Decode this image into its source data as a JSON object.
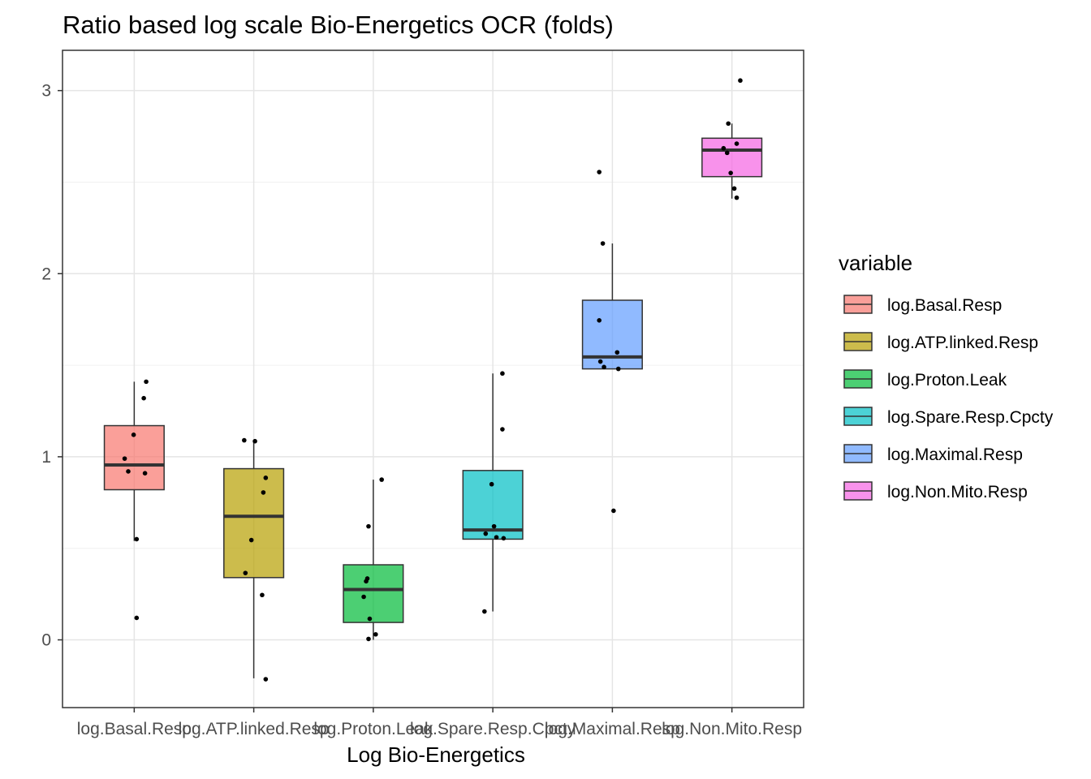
{
  "chart_data": {
    "type": "box",
    "title": "Ratio based log scale Bio-Energetics OCR (folds)",
    "xlabel": "Log Bio-Energetics",
    "ylabel": "",
    "ylim": [
      -0.37,
      3.22
    ],
    "yticks": [
      0,
      1,
      2,
      3
    ],
    "grid": true,
    "legend": {
      "title": "variable",
      "position": "right"
    },
    "categories": [
      "log.Basal.Resp",
      "log.ATP.linked.Resp",
      "log.Proton.Leak",
      "log.Spare.Resp.Cpcty",
      "log.Maximal.Resp",
      "log.Non.Mito.Resp"
    ],
    "colors": [
      "#F8766D",
      "#B79F00",
      "#00BA38",
      "#00BFC4",
      "#619CFF",
      "#F564E3"
    ],
    "boxes": [
      {
        "q1": 0.82,
        "median": 0.955,
        "q3": 1.17,
        "whisker_low": 0.54,
        "whisker_high": 1.41,
        "points": [
          [
            0.995,
            1.12
          ],
          [
            0.92,
            0.99
          ],
          [
            0.95,
            0.92
          ],
          [
            1.09,
            0.91
          ],
          [
            1.08,
            1.32
          ],
          [
            1.1,
            1.41
          ],
          [
            1.02,
            0.55
          ],
          [
            1.02,
            0.12
          ]
        ]
      },
      {
        "q1": 0.34,
        "median": 0.675,
        "q3": 0.935,
        "whisker_low": -0.21,
        "whisker_high": 1.09,
        "points": [
          [
            0.92,
            1.09
          ],
          [
            1.01,
            1.085
          ],
          [
            1.1,
            0.885
          ],
          [
            1.08,
            0.805
          ],
          [
            0.98,
            0.545
          ],
          [
            0.93,
            0.365
          ],
          [
            1.07,
            0.245
          ],
          [
            1.1,
            -0.215
          ]
        ]
      },
      {
        "q1": 0.095,
        "median": 0.275,
        "q3": 0.41,
        "whisker_low": 0.0,
        "whisker_high": 0.875,
        "points": [
          [
            1.07,
            0.875
          ],
          [
            0.96,
            0.62
          ],
          [
            0.95,
            0.335
          ],
          [
            0.94,
            0.32
          ],
          [
            0.92,
            0.235
          ],
          [
            0.97,
            0.115
          ],
          [
            1.02,
            0.03
          ],
          [
            0.96,
            0.005
          ]
        ]
      },
      {
        "q1": 0.55,
        "median": 0.6,
        "q3": 0.925,
        "whisker_low": 0.155,
        "whisker_high": 1.455,
        "points": [
          [
            1.08,
            1.455
          ],
          [
            1.08,
            1.15
          ],
          [
            0.99,
            0.85
          ],
          [
            1.01,
            0.62
          ],
          [
            0.94,
            0.58
          ],
          [
            1.03,
            0.56
          ],
          [
            1.09,
            0.555
          ],
          [
            0.93,
            0.155
          ]
        ]
      },
      {
        "q1": 1.48,
        "median": 1.545,
        "q3": 1.855,
        "whisker_low": 1.48,
        "whisker_high": 2.165,
        "points": [
          [
            0.89,
            2.555
          ],
          [
            0.92,
            2.165
          ],
          [
            0.89,
            1.745
          ],
          [
            1.04,
            1.57
          ],
          [
            0.9,
            1.52
          ],
          [
            0.93,
            1.49
          ],
          [
            1.05,
            1.48
          ],
          [
            1.01,
            0.705
          ]
        ]
      },
      {
        "q1": 2.53,
        "median": 2.675,
        "q3": 2.74,
        "whisker_low": 2.41,
        "whisker_high": 2.82,
        "points": [
          [
            1.07,
            3.055
          ],
          [
            0.97,
            2.82
          ],
          [
            1.04,
            2.71
          ],
          [
            0.93,
            2.685
          ],
          [
            0.96,
            2.66
          ],
          [
            0.99,
            2.55
          ],
          [
            1.02,
            2.465
          ],
          [
            1.04,
            2.415
          ]
        ]
      }
    ]
  }
}
